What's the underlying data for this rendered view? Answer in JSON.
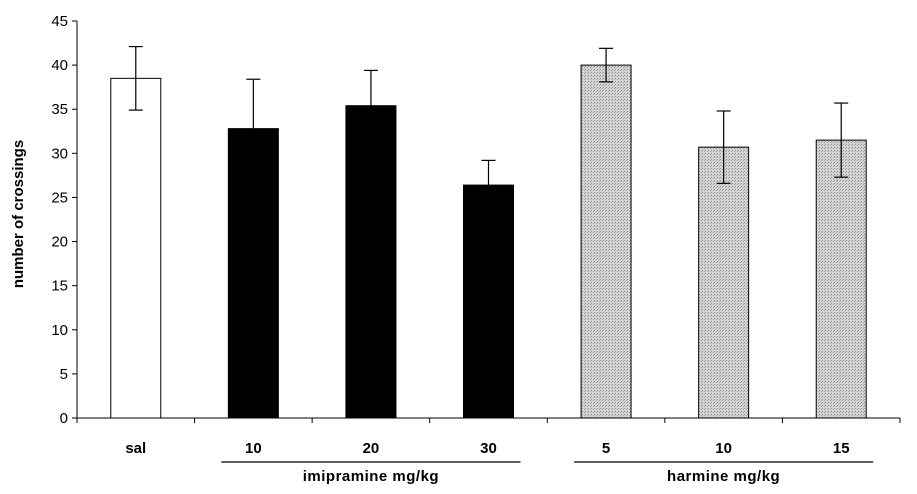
{
  "chart_data": {
    "type": "bar",
    "ylabel": "number of crossings",
    "xlabel": "",
    "ylim": [
      0,
      45
    ],
    "yticks": [
      0,
      5,
      10,
      15,
      20,
      25,
      30,
      35,
      40,
      45
    ],
    "grid": false,
    "categories": [
      "sal",
      "10",
      "20",
      "30",
      "5",
      "10",
      "15"
    ],
    "values": [
      38.5,
      32.8,
      35.4,
      26.4,
      40.0,
      30.7,
      31.5
    ],
    "errors": [
      3.6,
      5.6,
      4.0,
      2.8,
      1.9,
      4.1,
      4.2
    ],
    "fills": [
      "white",
      "black",
      "black",
      "black",
      "hatched",
      "hatched",
      "hatched"
    ],
    "groups": [
      {
        "label": "imipramine mg/kg",
        "category_indices": [
          1,
          2,
          3
        ]
      },
      {
        "label": "harmine mg/kg",
        "category_indices": [
          4,
          5,
          6
        ]
      }
    ],
    "colors": {
      "white": "#ffffff",
      "black": "#000000",
      "hatched": "#c8c8c8"
    }
  }
}
